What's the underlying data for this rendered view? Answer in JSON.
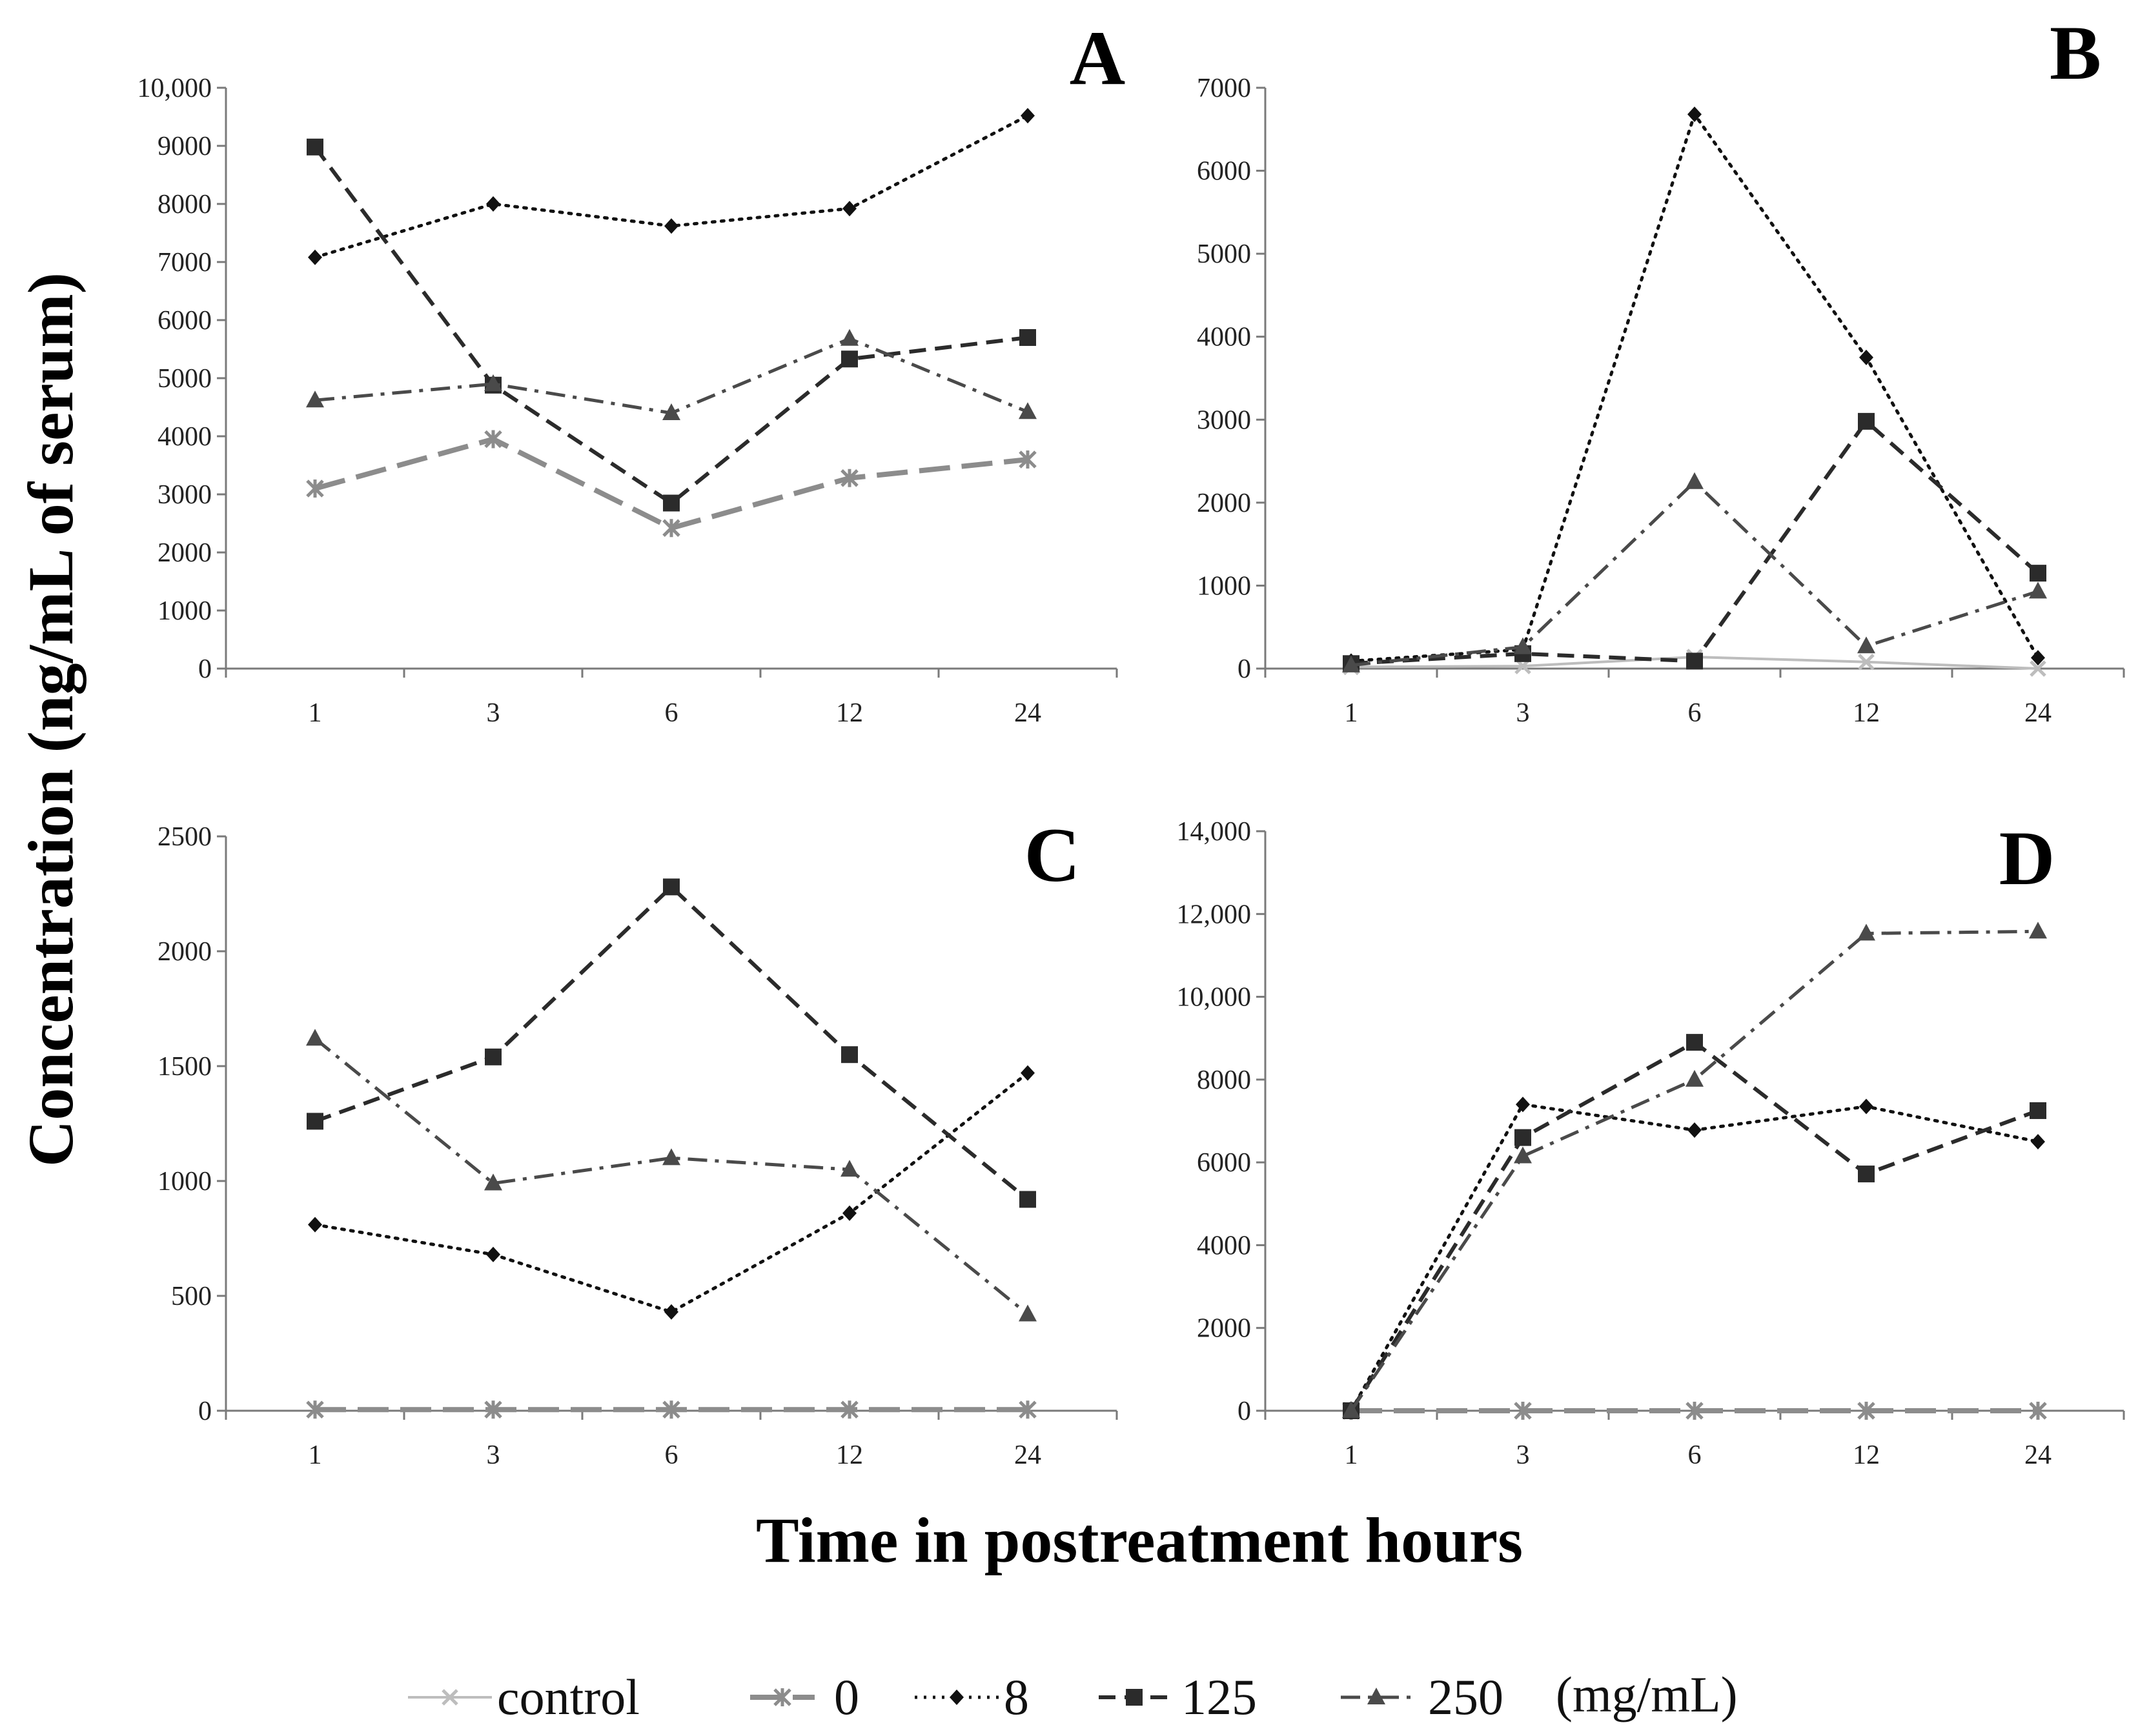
{
  "figure": {
    "ylabel": "Concentration (ng/mL of serum)",
    "xlabel": "Time in postreatment hours",
    "legend_units": "(mg/mL)"
  },
  "series_styles": [
    {
      "name": "control",
      "color": "#bdbdbd",
      "dash": "solid",
      "marker": "x",
      "width": 4
    },
    {
      "name": "0",
      "color": "#8c8c8c",
      "dash": "longdash",
      "marker": "asterisk",
      "width": 8
    },
    {
      "name": "8",
      "color": "#111111",
      "dash": "dotted",
      "marker": "diamond",
      "width": 5
    },
    {
      "name": "125",
      "color": "#2b2b2b",
      "dash": "dashed",
      "marker": "square",
      "width": 6
    },
    {
      "name": "250",
      "color": "#4a4a4a",
      "dash": "dashdot",
      "marker": "triangle",
      "width": 5
    }
  ],
  "chart_data": [
    {
      "type": "line",
      "title": "A",
      "categories": [
        "1",
        "3",
        "6",
        "12",
        "24"
      ],
      "ylim": [
        0,
        10000
      ],
      "yticks": [
        "0",
        "1000",
        "2000",
        "3000",
        "4000",
        "5000",
        "6000",
        "7000",
        "8000",
        "9000",
        "10,000"
      ],
      "series": [
        {
          "name": "0",
          "values": [
            3100,
            3950,
            2420,
            3280,
            3600
          ]
        },
        {
          "name": "8",
          "values": [
            7080,
            8000,
            7620,
            7920,
            9520
          ]
        },
        {
          "name": "125",
          "values": [
            8980,
            4880,
            2850,
            5330,
            5700
          ]
        },
        {
          "name": "250",
          "values": [
            4620,
            4900,
            4400,
            5680,
            4420
          ]
        }
      ]
    },
    {
      "type": "line",
      "title": "B",
      "categories": [
        "1",
        "3",
        "6",
        "12",
        "24"
      ],
      "ylim": [
        0,
        7000
      ],
      "yticks": [
        "0",
        "1000",
        "2000",
        "3000",
        "4000",
        "5000",
        "6000",
        "7000"
      ],
      "series": [
        {
          "name": "control",
          "values": [
            20,
            30,
            140,
            80,
            0
          ]
        },
        {
          "name": "8",
          "values": [
            90,
            230,
            6680,
            3750,
            130
          ]
        },
        {
          "name": "125",
          "values": [
            60,
            180,
            90,
            2980,
            1150
          ]
        },
        {
          "name": "250",
          "values": [
            40,
            260,
            2250,
            270,
            930
          ]
        }
      ]
    },
    {
      "type": "line",
      "title": "C",
      "categories": [
        "1",
        "3",
        "6",
        "12",
        "24"
      ],
      "ylim": [
        0,
        2500
      ],
      "yticks": [
        "0",
        "500",
        "1000",
        "1500",
        "2000",
        "2500"
      ],
      "series": [
        {
          "name": "0",
          "values": [
            5,
            5,
            5,
            5,
            5
          ]
        },
        {
          "name": "8",
          "values": [
            810,
            680,
            430,
            860,
            1470
          ]
        },
        {
          "name": "125",
          "values": [
            1260,
            1540,
            2280,
            1550,
            920
          ]
        },
        {
          "name": "250",
          "values": [
            1620,
            990,
            1100,
            1050,
            420
          ]
        }
      ]
    },
    {
      "type": "line",
      "title": "D",
      "categories": [
        "1",
        "3",
        "6",
        "12",
        "24"
      ],
      "ylim": [
        0,
        14000
      ],
      "yticks": [
        "0",
        "2000",
        "4000",
        "6000",
        "8000",
        "10,000",
        "12,000",
        "14,000"
      ],
      "series": [
        {
          "name": "0",
          "values": [
            0,
            0,
            0,
            0,
            0
          ]
        },
        {
          "name": "8",
          "values": [
            0,
            7400,
            6780,
            7350,
            6500
          ]
        },
        {
          "name": "125",
          "values": [
            0,
            6600,
            8900,
            5720,
            7250
          ]
        },
        {
          "name": "250",
          "values": [
            0,
            6150,
            8000,
            11530,
            11580
          ]
        }
      ]
    }
  ]
}
